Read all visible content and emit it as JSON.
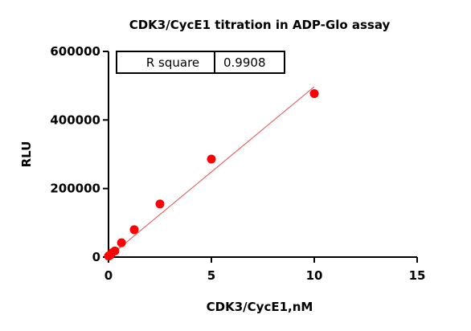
{
  "chart_data": {
    "type": "scatter",
    "title": "CDK3/CycE1 titration in ADP-Glo assay",
    "xlabel": "CDK3/CycE1,nM",
    "ylabel": "RLU",
    "xlim": [
      0,
      15
    ],
    "ylim": [
      0,
      600000
    ],
    "x_ticks": [
      0,
      5,
      10,
      15
    ],
    "x_tick_labels": [
      "0",
      "5",
      "10",
      "15"
    ],
    "y_ticks": [
      0,
      200000,
      400000,
      600000
    ],
    "y_tick_labels": [
      "0",
      "200000",
      "400000",
      "600000"
    ],
    "grid": false,
    "points": [
      {
        "x": 0,
        "y": 3000
      },
      {
        "x": 0.08,
        "y": 6000
      },
      {
        "x": 0.16,
        "y": 12000
      },
      {
        "x": 0.31,
        "y": 18000
      },
      {
        "x": 0.63,
        "y": 42000
      },
      {
        "x": 1.25,
        "y": 80000
      },
      {
        "x": 2.5,
        "y": 155000
      },
      {
        "x": 5,
        "y": 286000
      },
      {
        "x": 10,
        "y": 477000
      }
    ],
    "fit_line": {
      "x": [
        0,
        10
      ],
      "y": [
        0,
        497000
      ]
    },
    "point_color": "#ff0000",
    "line_color": "#e05050",
    "r_square": {
      "label": "R square",
      "value": "0.9908"
    }
  }
}
